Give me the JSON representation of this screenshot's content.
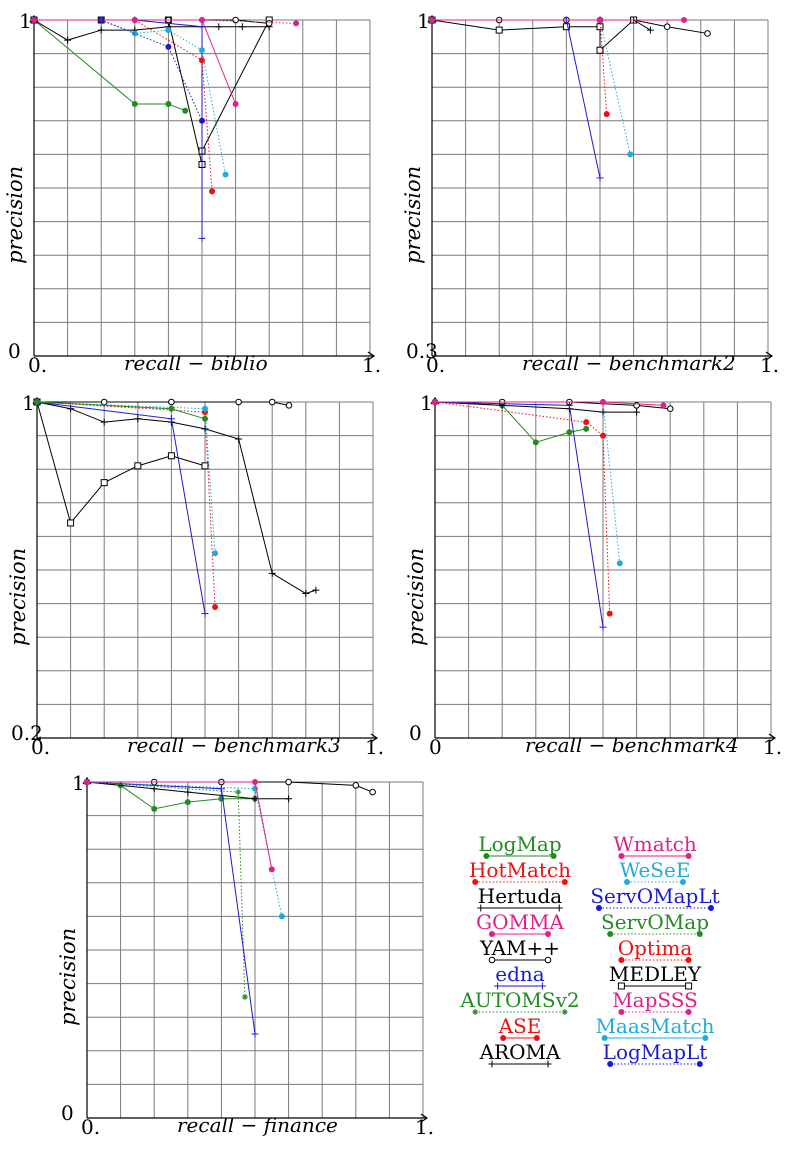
{
  "legend": [
    {
      "name": "LogMap",
      "color": "#228B22",
      "marker": "dot",
      "dash": false
    },
    {
      "name": "Wmatch",
      "color": "#E0218A",
      "marker": "dot",
      "dash": false
    },
    {
      "name": "HotMatch",
      "color": "#EE1111",
      "marker": "dot",
      "dash": true
    },
    {
      "name": "WeSeE",
      "color": "#22AADD",
      "marker": "dot",
      "dash": true
    },
    {
      "name": "Hertuda",
      "color": "#000000",
      "marker": "plus",
      "dash": false
    },
    {
      "name": "ServOMapLt",
      "color": "#1A1AD0",
      "marker": "dot",
      "dash": true
    },
    {
      "name": "GOMMA",
      "color": "#E0218A",
      "marker": "dot",
      "dash": false
    },
    {
      "name": "ServOMap",
      "color": "#228B22",
      "marker": "dot",
      "dash": true
    },
    {
      "name": "YAM++",
      "color": "#000000",
      "marker": "circle",
      "dash": false
    },
    {
      "name": "Optima",
      "color": "#EE1111",
      "marker": "dot",
      "dash": true
    },
    {
      "name": "edna",
      "color": "#1A1AD0",
      "marker": "plus",
      "dash": false
    },
    {
      "name": "MEDLEY",
      "color": "#000000",
      "marker": "square",
      "dash": false
    },
    {
      "name": "AUTOMSv2",
      "color": "#228B22",
      "marker": "star",
      "dash": true
    },
    {
      "name": "MapSSS",
      "color": "#E0218A",
      "marker": "dot",
      "dash": true
    },
    {
      "name": "ASE",
      "color": "#EE1111",
      "marker": "dot",
      "dash": false
    },
    {
      "name": "MaasMatch",
      "color": "#22AADD",
      "marker": "dot",
      "dash": false
    },
    {
      "name": "AROMA",
      "color": "#000000",
      "marker": "plus",
      "dash": false
    },
    {
      "name": "LogMapLt",
      "color": "#1A1AD0",
      "marker": "dot",
      "dash": true
    }
  ],
  "chart_data": [
    {
      "type": "line",
      "xlabel": "recall − biblio",
      "ylabel": "precision",
      "xlim": [
        0,
        1
      ],
      "ylim": [
        0,
        1
      ],
      "ticks": {
        "x_start": "0.",
        "x_end": "1.",
        "y_start": "0",
        "y_end": "1"
      },
      "series": [
        {
          "name": "LogMap",
          "x": [
            0,
            0.3,
            0.4,
            0.45
          ],
          "y": [
            1,
            0.75,
            0.75,
            0.73
          ]
        },
        {
          "name": "MEDLEY",
          "x": [
            0,
            0.2,
            0.4,
            0.5,
            0.5,
            0.7
          ],
          "y": [
            1,
            1,
            1,
            0.57,
            0.61,
            1
          ]
        },
        {
          "name": "Hertuda",
          "x": [
            0,
            0.1,
            0.2,
            0.3,
            0.4,
            0.5,
            0.55,
            0.62,
            0.7
          ],
          "y": [
            1,
            0.94,
            0.97,
            0.97,
            0.98,
            0.98,
            0.98,
            0.98,
            0.98
          ]
        },
        {
          "name": "YAM++",
          "x": [
            0,
            0.2,
            0.4,
            0.6,
            0.7
          ],
          "y": [
            1,
            1,
            1,
            1,
            0.99
          ]
        },
        {
          "name": "edna",
          "x": [
            0,
            0.3,
            0.5,
            0.5
          ],
          "y": [
            1,
            1,
            0.98,
            0.35
          ]
        },
        {
          "name": "HotMatch",
          "x": [
            0,
            0.3,
            0.5,
            0.53
          ],
          "y": [
            1,
            1,
            0.88,
            0.49
          ]
        },
        {
          "name": "WeSeE",
          "x": [
            0,
            0.2,
            0.3,
            0.4,
            0.5,
            0.57
          ],
          "y": [
            1,
            1,
            0.96,
            0.97,
            0.91,
            0.54
          ]
        },
        {
          "name": "Wmatch",
          "x": [
            0,
            0.3,
            0.5,
            0.6
          ],
          "y": [
            1,
            1,
            1,
            0.75
          ]
        },
        {
          "name": "ServOMapLt",
          "x": [
            0.2,
            0.4,
            0.5
          ],
          "y": [
            1,
            0.92,
            0.7
          ]
        },
        {
          "name": "MapSSS",
          "x": [
            0,
            0.5,
            0.78
          ],
          "y": [
            1,
            1,
            0.99
          ]
        }
      ]
    },
    {
      "type": "line",
      "xlabel": "recall − benchmark2",
      "ylabel": "precision",
      "xlim": [
        0,
        1
      ],
      "ylim": [
        0,
        1
      ],
      "ticks": {
        "x_start": "0.",
        "x_end": "1.",
        "y_start": "0.3",
        "y_end": "1"
      },
      "series": [
        {
          "name": "YAM++",
          "x": [
            0,
            0.2,
            0.4,
            0.5,
            0.6,
            0.7,
            0.82
          ],
          "y": [
            1,
            1,
            1,
            1,
            1,
            0.98,
            0.96
          ]
        },
        {
          "name": "MEDLEY",
          "x": [
            0,
            0.2,
            0.4,
            0.5,
            0.5,
            0.6
          ],
          "y": [
            1,
            0.97,
            0.98,
            0.98,
            0.91,
            1
          ]
        },
        {
          "name": "Hertuda",
          "x": [
            0.4,
            0.5,
            0.6,
            0.65
          ],
          "y": [
            1,
            1,
            1,
            0.97
          ]
        },
        {
          "name": "edna",
          "x": [
            0,
            0.4,
            0.5
          ],
          "y": [
            1,
            1,
            0.53
          ]
        },
        {
          "name": "HotMatch",
          "x": [
            0,
            0.5,
            0.52
          ],
          "y": [
            1,
            1,
            0.72
          ]
        },
        {
          "name": "WeSeE",
          "x": [
            0,
            0.5,
            0.59
          ],
          "y": [
            1,
            1,
            0.6
          ]
        },
        {
          "name": "Wmatch",
          "x": [
            0,
            0.5,
            0.75
          ],
          "y": [
            1,
            1,
            1
          ]
        }
      ]
    },
    {
      "type": "line",
      "xlabel": "recall − benchmark3",
      "ylabel": "precision",
      "xlim": [
        0,
        1
      ],
      "ylim": [
        0,
        1
      ],
      "ticks": {
        "x_start": "0.",
        "x_end": "1.",
        "y_start": "0.2",
        "y_end": "1"
      },
      "series": [
        {
          "name": "MEDLEY",
          "x": [
            0,
            0.1,
            0.2,
            0.3,
            0.4,
            0.5
          ],
          "y": [
            1,
            0.64,
            0.76,
            0.81,
            0.84,
            0.81
          ]
        },
        {
          "name": "Hertuda",
          "x": [
            0,
            0.1,
            0.2,
            0.3,
            0.4,
            0.5,
            0.6,
            0.7,
            0.8,
            0.83
          ],
          "y": [
            1,
            0.98,
            0.94,
            0.95,
            0.94,
            0.92,
            0.89,
            0.49,
            0.43,
            0.44
          ]
        },
        {
          "name": "YAM++",
          "x": [
            0,
            0.2,
            0.4,
            0.6,
            0.7,
            0.75
          ],
          "y": [
            1,
            1,
            1,
            1,
            1,
            0.99
          ]
        },
        {
          "name": "edna",
          "x": [
            0,
            0.4,
            0.5
          ],
          "y": [
            1,
            0.95,
            0.37
          ]
        },
        {
          "name": "HotMatch",
          "x": [
            0,
            0.5,
            0.53
          ],
          "y": [
            1,
            0.97,
            0.39
          ]
        },
        {
          "name": "WeSeE",
          "x": [
            0,
            0.5,
            0.53
          ],
          "y": [
            1,
            0.98,
            0.55
          ]
        },
        {
          "name": "LogMap",
          "x": [
            0,
            0.4,
            0.5
          ],
          "y": [
            1,
            0.98,
            0.95
          ]
        }
      ]
    },
    {
      "type": "line",
      "xlabel": "recall − benchmark4",
      "ylabel": "precision",
      "xlim": [
        0,
        1
      ],
      "ylim": [
        0,
        1
      ],
      "ticks": {
        "x_start": "0",
        "x_end": "1.",
        "y_start": "0",
        "y_end": "1"
      },
      "series": [
        {
          "name": "LogMap",
          "x": [
            0,
            0.2,
            0.3,
            0.4,
            0.45
          ],
          "y": [
            1,
            0.99,
            0.88,
            0.91,
            0.92
          ]
        },
        {
          "name": "Hertuda",
          "x": [
            0,
            0.2,
            0.4,
            0.5,
            0.6
          ],
          "y": [
            1,
            0.99,
            0.98,
            0.97,
            0.97
          ]
        },
        {
          "name": "YAM++",
          "x": [
            0,
            0.2,
            0.4,
            0.6,
            0.7
          ],
          "y": [
            1,
            1,
            1,
            0.99,
            0.98
          ]
        },
        {
          "name": "edna",
          "x": [
            0,
            0.4,
            0.5
          ],
          "y": [
            1,
            0.99,
            0.33
          ]
        },
        {
          "name": "HotMatch",
          "x": [
            0,
            0.45,
            0.5,
            0.52
          ],
          "y": [
            1,
            0.94,
            0.9,
            0.37
          ]
        },
        {
          "name": "WeSeE",
          "x": [
            0,
            0.5,
            0.55
          ],
          "y": [
            1,
            1,
            0.52
          ]
        },
        {
          "name": "Wmatch",
          "x": [
            0,
            0.5,
            0.68
          ],
          "y": [
            1,
            1,
            0.99
          ]
        }
      ]
    },
    {
      "type": "line",
      "xlabel": "recall − finance",
      "ylabel": "precision",
      "xlim": [
        0,
        1
      ],
      "ylim": [
        0,
        1
      ],
      "ticks": {
        "x_start": "0.",
        "x_end": "1.",
        "y_start": "0",
        "y_end": "1"
      },
      "series": [
        {
          "name": "LogMap",
          "x": [
            0,
            0.1,
            0.2,
            0.3,
            0.4,
            0.5
          ],
          "y": [
            1,
            0.99,
            0.92,
            0.94,
            0.95,
            0.95
          ]
        },
        {
          "name": "Hertuda",
          "x": [
            0,
            0.2,
            0.3,
            0.5,
            0.6
          ],
          "y": [
            1,
            0.98,
            0.97,
            0.95,
            0.95
          ]
        },
        {
          "name": "YAM++",
          "x": [
            0,
            0.2,
            0.4,
            0.6,
            0.8,
            0.85
          ],
          "y": [
            1,
            1,
            1,
            1,
            0.99,
            0.97
          ]
        },
        {
          "name": "AUTOMSv2",
          "x": [
            0,
            0.45,
            0.47
          ],
          "y": [
            1,
            0.97,
            0.36
          ]
        },
        {
          "name": "edna",
          "x": [
            0,
            0.4,
            0.5
          ],
          "y": [
            1,
            0.98,
            0.25
          ]
        },
        {
          "name": "WeSeE",
          "x": [
            0,
            0.5,
            0.58
          ],
          "y": [
            1,
            0.98,
            0.6
          ]
        },
        {
          "name": "Wmatch",
          "x": [
            0,
            0.5,
            0.55
          ],
          "y": [
            1,
            1,
            0.74
          ]
        }
      ]
    }
  ]
}
